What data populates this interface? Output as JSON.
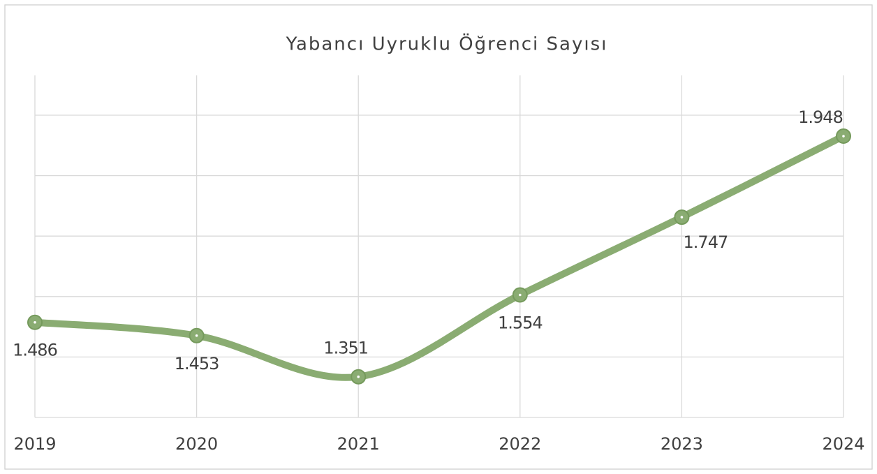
{
  "chart_data": {
    "type": "line",
    "title": "Yabancı Uyruklu Öğrenci Sayısı",
    "categories": [
      "2019",
      "2020",
      "2021",
      "2022",
      "2023",
      "2024"
    ],
    "series": [
      {
        "name": "Yabancı Uyruklu Öğrenci Sayısı",
        "color": "#8aac72",
        "values": [
          1486,
          1453,
          1351,
          1554,
          1747,
          1948
        ],
        "value_labels": [
          "1.486",
          "1.453",
          "1.351",
          "1.554",
          "1.747",
          "1.948"
        ]
      }
    ],
    "ylim": [
      1250,
      2000
    ],
    "yticks": [
      1250,
      1400,
      1550,
      1700,
      1850,
      2000
    ],
    "grid": true,
    "smooth": true
  }
}
